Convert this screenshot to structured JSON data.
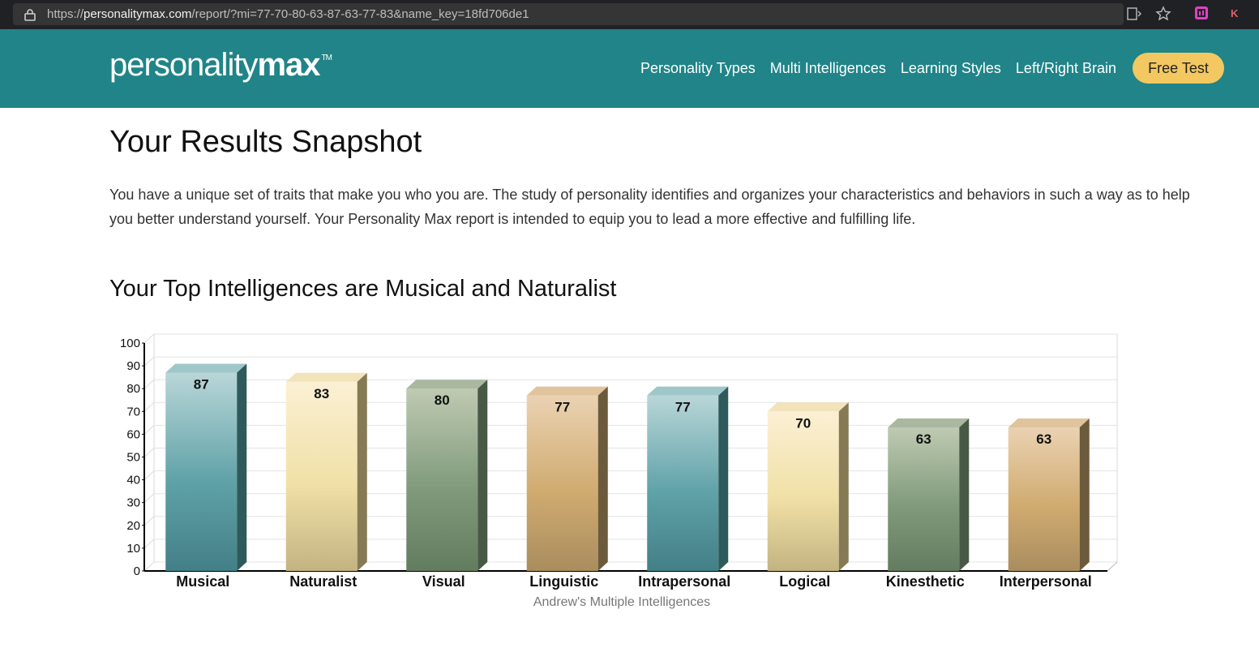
{
  "browser": {
    "url_scheme": "https://",
    "url_host": "personalitymax.com",
    "url_path": "/report/?mi=77-70-80-63-87-63-77-83&name_key=18fd706de1",
    "profile_initial": "K"
  },
  "header": {
    "logo_light": "personality",
    "logo_bold": "max",
    "logo_tm": "TM",
    "nav": [
      "Personality Types",
      "Multi Intelligences",
      "Learning Styles",
      "Left/Right Brain"
    ],
    "cta_label": "Free Test"
  },
  "main": {
    "title": "Your Results Snapshot",
    "intro": "You have a unique set of traits that make you who you are. The study of personality identifies and organizes your characteristics and behaviors in such a way as to help you better understand yourself. Your Personality Max report is intended to equip you to lead a more effective and fulfilling life.",
    "section_title": "Your Top Intelligences are Musical and Naturalist"
  },
  "colors": {
    "header_bg": "#208488",
    "cta_bg": "#f3c860",
    "bar_teal": "#5a9fa6",
    "bar_cream": "#ecdca7",
    "bar_sage": "#7f9878",
    "bar_tan": "#c7a774"
  },
  "chart_data": {
    "type": "bar",
    "categories": [
      "Musical",
      "Naturalist",
      "Visual",
      "Linguistic",
      "Intrapersonal",
      "Logical",
      "Kinesthetic",
      "Interpersonal"
    ],
    "values": [
      87,
      83,
      80,
      77,
      77,
      70,
      63,
      63
    ],
    "xlabel": "Andrew's Multiple Intelligences",
    "ylabel": "",
    "ylim": [
      0,
      100
    ],
    "yticks": [
      0,
      10,
      20,
      30,
      40,
      50,
      60,
      70,
      80,
      90,
      100
    ],
    "grid": true,
    "style": "3d-cylinder-bars",
    "bar_colors": [
      "teal",
      "cream",
      "sage",
      "tan",
      "teal",
      "cream",
      "sage",
      "tan"
    ]
  }
}
